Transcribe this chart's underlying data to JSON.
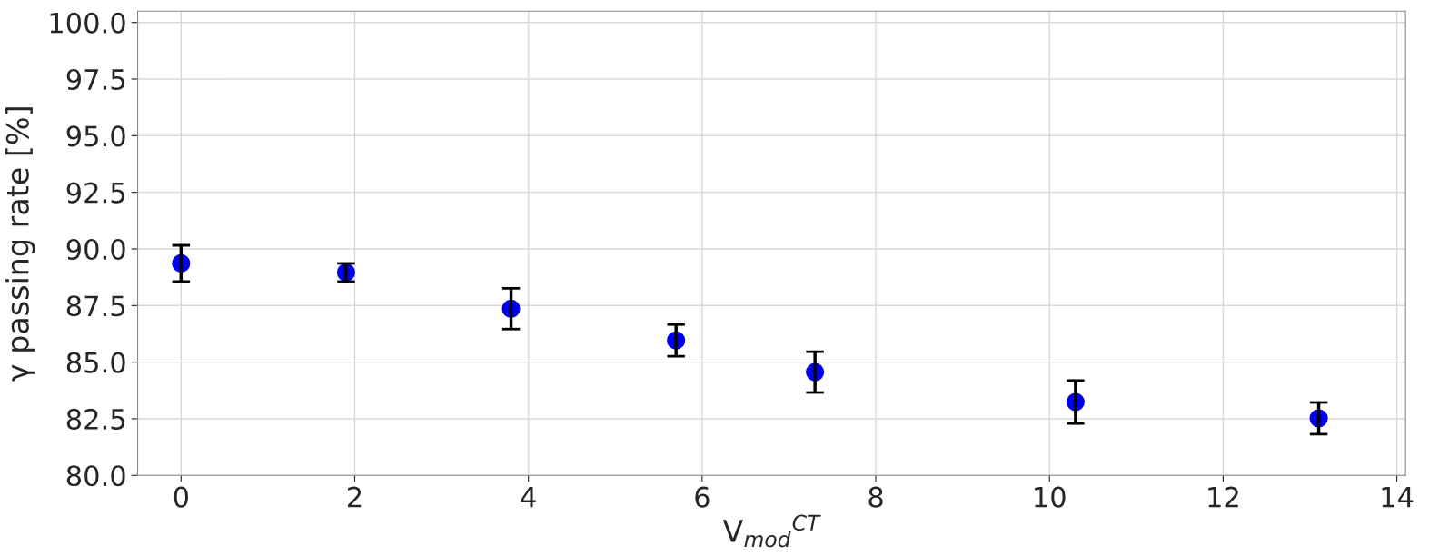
{
  "chart_data": {
    "type": "scatter",
    "xlabel": "V$_{mod}$$^{CT}$",
    "ylabel": "γ passing rate [%]",
    "x": [
      0,
      1.9,
      3.8,
      5.7,
      7.3,
      10.3,
      13.1
    ],
    "series": [
      {
        "color": "#0000ee",
        "values": [
          89.36,
          88.96,
          87.36,
          85.96,
          84.56,
          83.24,
          82.52
        ],
        "errors": [
          0.8,
          0.4,
          0.9,
          0.7,
          0.9,
          0.95,
          0.7
        ]
      }
    ],
    "xlim": [
      -0.5,
      14.1
    ],
    "ylim": [
      80,
      100.5
    ],
    "xticks": [
      0,
      2,
      4,
      6,
      8,
      10,
      12,
      14
    ],
    "yticks": [
      {
        "value": 80,
        "label": "80.0"
      },
      {
        "value": 82.5,
        "label": "82.5"
      },
      {
        "value": 85,
        "label": "85.0"
      },
      {
        "value": 87.5,
        "label": "87.5"
      },
      {
        "value": 90,
        "label": "90.0"
      },
      {
        "value": 92.5,
        "label": "92.5"
      },
      {
        "value": 95,
        "label": "95.0"
      },
      {
        "value": 97.5,
        "label": "97.5"
      },
      {
        "value": 100,
        "label": "100.0"
      }
    ],
    "grid": true,
    "marker": "circle"
  }
}
